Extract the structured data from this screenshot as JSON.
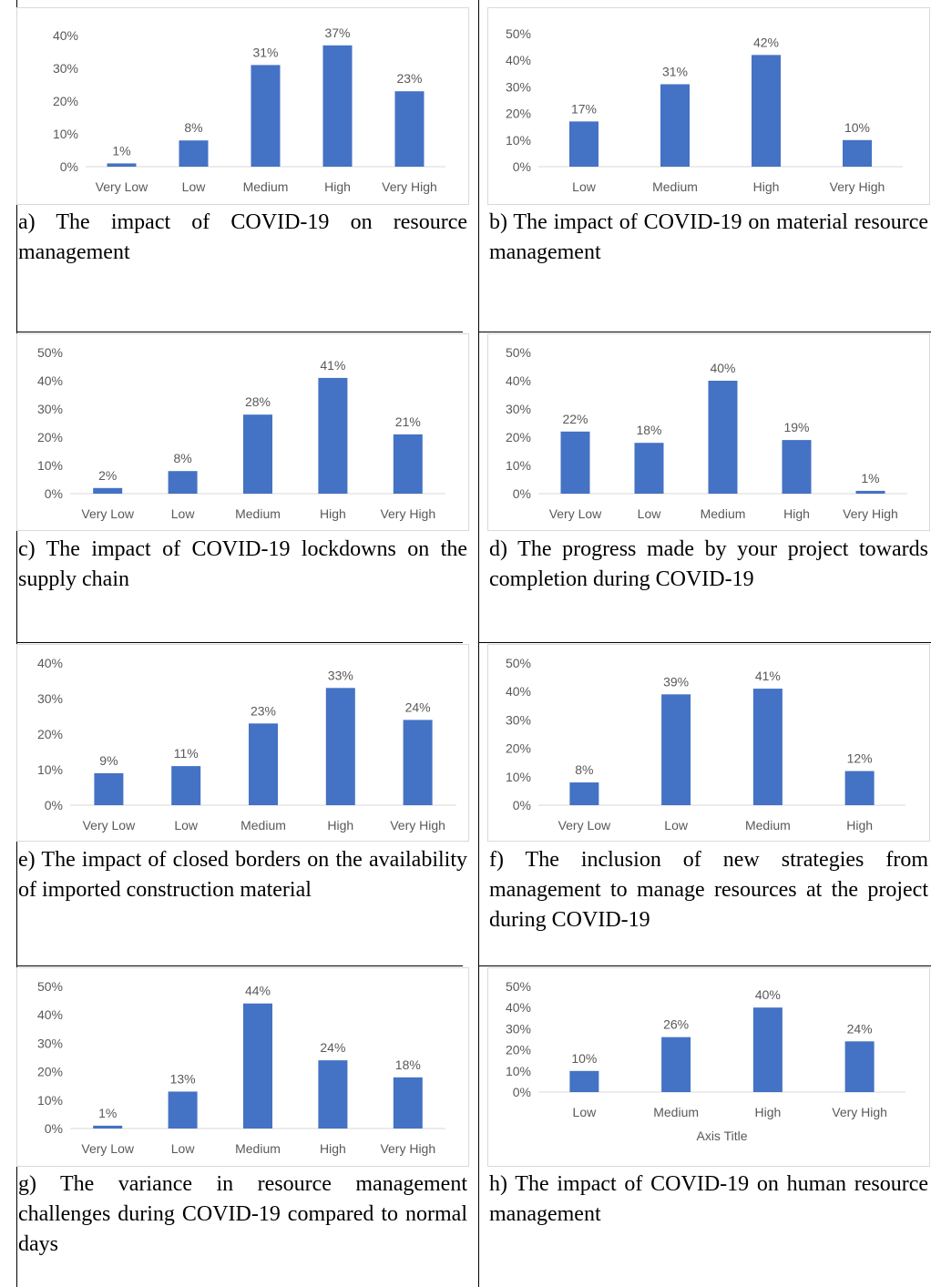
{
  "colors": {
    "bar": "#4472c4",
    "gridline": "#d9d9d9",
    "tick": "#595959",
    "frame": "#d9d9d9"
  },
  "chart_data": [
    {
      "type": "bar",
      "caption": "a) The impact of COVID-19 on resource management",
      "categories": [
        "Very Low",
        "Low",
        "Medium",
        "High",
        "Very High"
      ],
      "values": [
        1,
        8,
        31,
        37,
        23
      ],
      "data_labels": [
        "1%",
        "8%",
        "31%",
        "37%",
        "23%"
      ],
      "yticks": [
        "0%",
        "10%",
        "20%",
        "30%",
        "40%"
      ],
      "ylim": [
        0,
        40
      ],
      "xlabel": "",
      "grid": false
    },
    {
      "type": "bar",
      "caption": "b) The impact of COVID-19 on material resource management",
      "categories": [
        "Low",
        "Medium",
        "High",
        "Very High"
      ],
      "values": [
        17,
        31,
        42,
        10
      ],
      "data_labels": [
        "17%",
        "31%",
        "42%",
        "10%"
      ],
      "yticks": [
        "0%",
        "10%",
        "20%",
        "30%",
        "40%",
        "50%"
      ],
      "ylim": [
        0,
        50
      ],
      "xlabel": "",
      "grid": false
    },
    {
      "type": "bar",
      "caption": "c) The impact of COVID-19 lockdowns on the supply chain",
      "categories": [
        "Very Low",
        "Low",
        "Medium",
        "High",
        "Very High"
      ],
      "values": [
        2,
        8,
        28,
        41,
        21
      ],
      "data_labels": [
        "2%",
        "8%",
        "28%",
        "41%",
        "21%"
      ],
      "yticks": [
        "0%",
        "10%",
        "20%",
        "30%",
        "40%",
        "50%"
      ],
      "ylim": [
        0,
        50
      ],
      "xlabel": "",
      "grid": false
    },
    {
      "type": "bar",
      "caption": "d) The progress made by your project towards completion during COVID-19",
      "categories": [
        "Very Low",
        "Low",
        "Medium",
        "High",
        "Very High"
      ],
      "values": [
        22,
        18,
        40,
        19,
        1
      ],
      "data_labels": [
        "22%",
        "18%",
        "40%",
        "19%",
        "1%"
      ],
      "yticks": [
        "0%",
        "10%",
        "20%",
        "30%",
        "40%",
        "50%"
      ],
      "ylim": [
        0,
        50
      ],
      "xlabel": "",
      "grid": false
    },
    {
      "type": "bar",
      "caption": "e) The impact of closed borders on the availability of imported construction material",
      "categories": [
        "Very Low",
        "Low",
        "Medium",
        "High",
        "Very High"
      ],
      "values": [
        9,
        11,
        23,
        33,
        24
      ],
      "data_labels": [
        "9%",
        "11%",
        "23%",
        "33%",
        "24%"
      ],
      "yticks": [
        "0%",
        "10%",
        "20%",
        "30%",
        "40%"
      ],
      "ylim": [
        0,
        40
      ],
      "xlabel": "",
      "grid": false
    },
    {
      "type": "bar",
      "caption": "f) The inclusion of new strategies from management to manage resources at the project during COVID-19",
      "categories": [
        "Very Low",
        "Low",
        "Medium",
        "High"
      ],
      "values": [
        8,
        39,
        41,
        12
      ],
      "data_labels": [
        "8%",
        "39%",
        "41%",
        "12%"
      ],
      "yticks": [
        "0%",
        "10%",
        "20%",
        "30%",
        "40%",
        "50%"
      ],
      "ylim": [
        0,
        50
      ],
      "xlabel": "",
      "grid": false
    },
    {
      "type": "bar",
      "caption": "g) The variance in resource management challenges during COVID-19 compared to normal days",
      "categories": [
        "Very Low",
        "Low",
        "Medium",
        "High",
        "Very High"
      ],
      "values": [
        1,
        13,
        44,
        24,
        18
      ],
      "data_labels": [
        "1%",
        "13%",
        "44%",
        "24%",
        "18%"
      ],
      "yticks": [
        "0%",
        "10%",
        "20%",
        "30%",
        "40%",
        "50%"
      ],
      "ylim": [
        0,
        50
      ],
      "xlabel": "",
      "grid": false
    },
    {
      "type": "bar",
      "caption": "h) The impact of COVID-19 on human resource management",
      "categories": [
        "Low",
        "Medium",
        "High",
        "Very High"
      ],
      "values": [
        10,
        26,
        40,
        24
      ],
      "data_labels": [
        "10%",
        "26%",
        "40%",
        "24%"
      ],
      "yticks": [
        "0%",
        "10%",
        "20%",
        "30%",
        "40%",
        "50%"
      ],
      "ylim": [
        0,
        50
      ],
      "xlabel": "Axis Title",
      "grid": false
    }
  ]
}
